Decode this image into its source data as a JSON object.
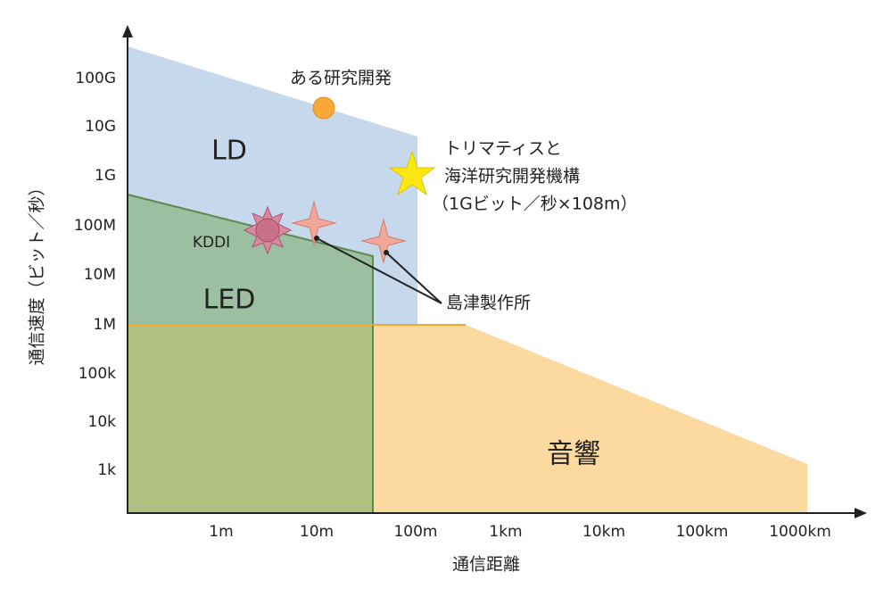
{
  "axes": {
    "y_title": "通信速度（ビット／秒）",
    "x_title": "通信距離",
    "y_ticks": [
      "100G",
      "10G",
      "1G",
      "100M",
      "10M",
      "1M",
      "100k",
      "10k",
      "1k"
    ],
    "x_ticks": [
      "1m",
      "10m",
      "100m",
      "1km",
      "10km",
      "100km",
      "1000km"
    ]
  },
  "regions": {
    "ld": "LD",
    "led": "LED",
    "acoustic": "音響"
  },
  "points": {
    "research": "ある研究開発",
    "kddi": "KDDI",
    "jamstec": [
      "トリマティスと",
      "海洋研究開発機構",
      "（1Gビット／秒×108m）"
    ],
    "shimadzu": "島津製作所"
  }
}
